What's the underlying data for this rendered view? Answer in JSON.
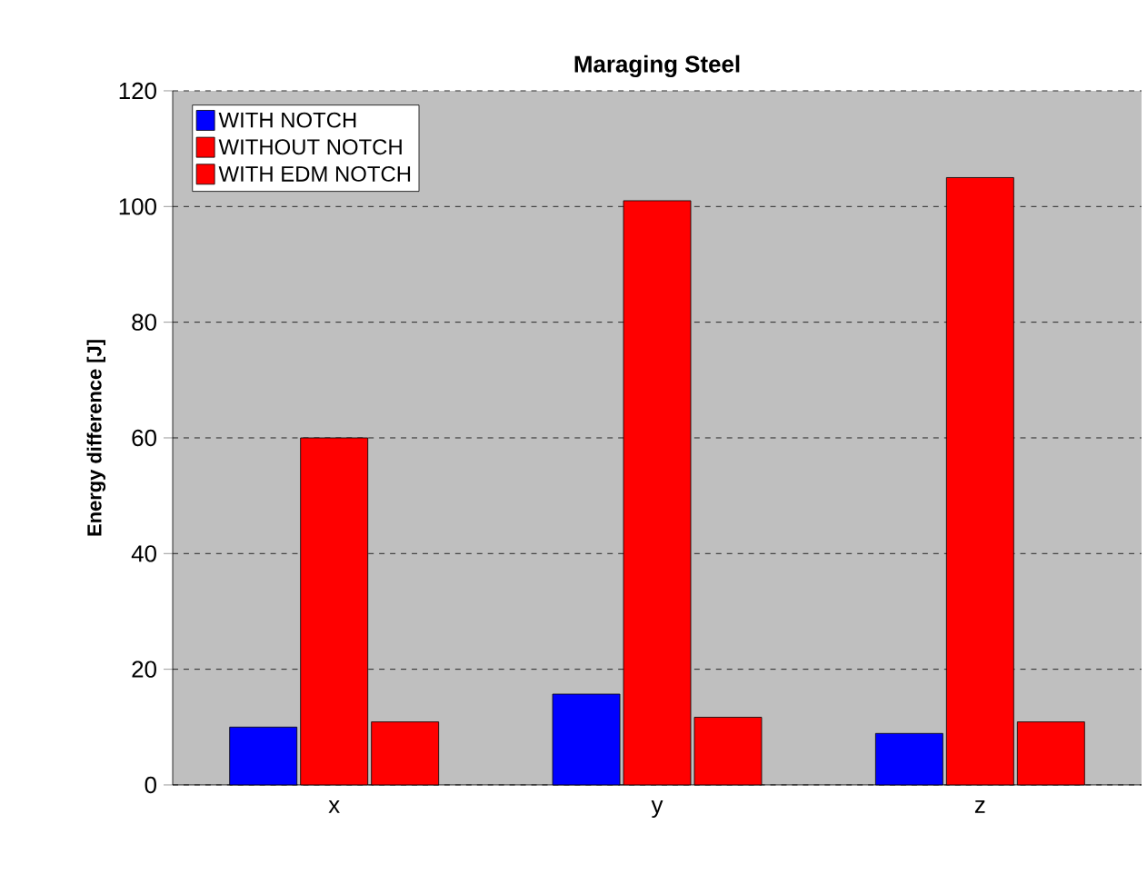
{
  "chart_data": {
    "type": "bar",
    "title": "Maraging Steel",
    "ylabel": "Energy difference [J]",
    "categories": [
      "x",
      "y",
      "z"
    ],
    "series": [
      {
        "name": "WITH NOTCH",
        "color": "#0000ff",
        "values": [
          10,
          15.7,
          8.9
        ]
      },
      {
        "name": "WITHOUT NOTCH",
        "color": "#ff0000",
        "values": [
          60,
          101,
          105
        ]
      },
      {
        "name": "WITH EDM NOTCH",
        "color": "#ff0000",
        "values": [
          10.9,
          11.7,
          10.9
        ]
      }
    ],
    "ylim": [
      0,
      120
    ],
    "yticks": [
      0,
      20,
      40,
      60,
      80,
      100,
      120
    ],
    "grid": "y",
    "legend": "top left"
  }
}
